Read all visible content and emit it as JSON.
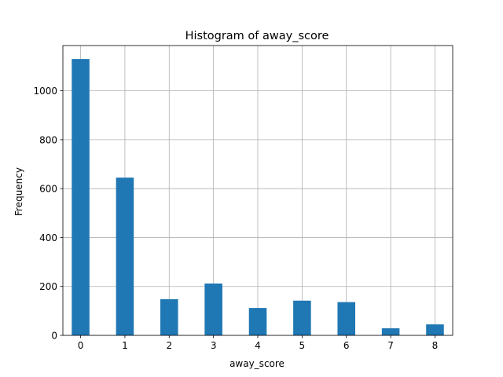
{
  "chart_data": {
    "type": "bar",
    "title": "Histogram of away_score",
    "xlabel": "away_score",
    "ylabel": "Frequency",
    "x": [
      0,
      1,
      2,
      3,
      4,
      5,
      6,
      7,
      8
    ],
    "values": [
      1130,
      645,
      148,
      212,
      112,
      142,
      136,
      29,
      45
    ],
    "xlim": [
      -0.4,
      8.4
    ],
    "ylim": [
      0,
      1185
    ],
    "xticks": [
      0,
      1,
      2,
      3,
      4,
      5,
      6,
      7,
      8
    ],
    "yticks": [
      0,
      200,
      400,
      600,
      800,
      1000
    ],
    "bar_width": 0.4,
    "grid": true,
    "colors": {
      "bar": "#1f77b4",
      "grid": "#b0b0b0",
      "axis": "#000000"
    }
  }
}
